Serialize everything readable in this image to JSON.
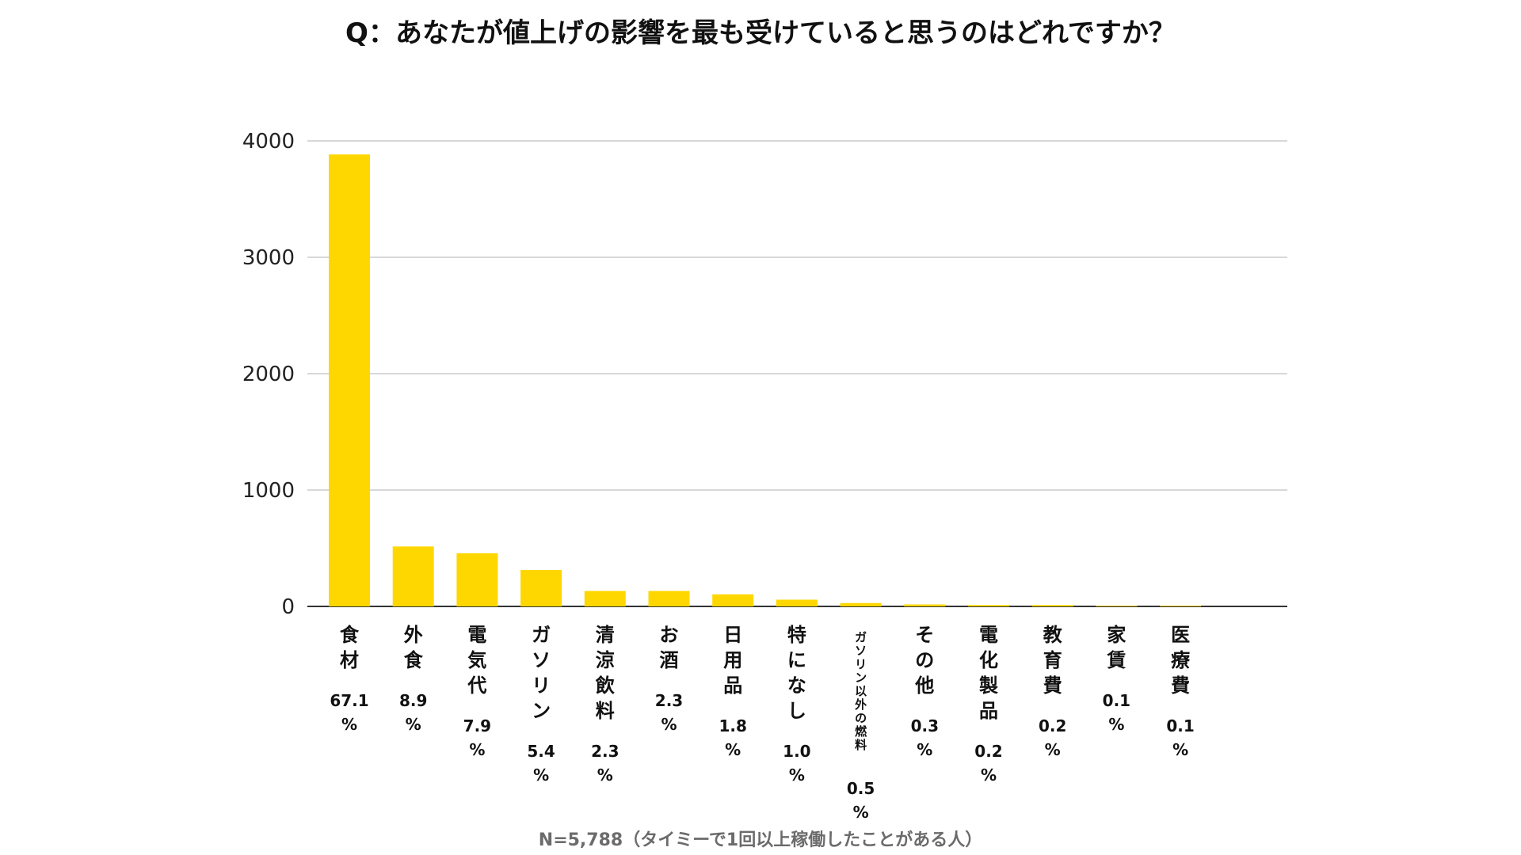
{
  "chart_data": {
    "type": "bar",
    "title": "Q：あなたが値上げの影響を最も受けていると思うのはどれですか？",
    "footnote": "N=5,788（タイミーで1回以上稼働したことがある人）",
    "categories": [
      "食材",
      "外食",
      "電気代",
      "ガソリン",
      "清涼飲料",
      "お酒",
      "日用品",
      "特になし",
      "ガソリン以外の燃料",
      "その他",
      "電化製品",
      "教育費",
      "家賃",
      "医療費"
    ],
    "percent_labels": [
      "67.1%",
      "8.9%",
      "7.9%",
      "5.4%",
      "2.3%",
      "2.3%",
      "1.8%",
      "1.0%",
      "0.5%",
      "0.3%",
      "0.2%",
      "0.2%",
      "0.1%",
      "0.1%"
    ],
    "values": [
      3884,
      515,
      457,
      313,
      133,
      133,
      104,
      58,
      29,
      17,
      12,
      12,
      6,
      6
    ],
    "yticks": [
      0,
      1000,
      2000,
      3000,
      4000
    ],
    "ylim": [
      0,
      4000
    ],
    "grid": true,
    "bar_color": "#FFD700"
  }
}
